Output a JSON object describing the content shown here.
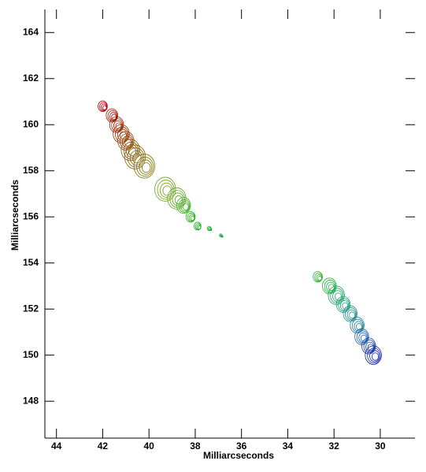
{
  "chart_data": {
    "type": "scatter",
    "xlabel": "Milliarcseconds",
    "ylabel": "Milliarcseconds",
    "xlim": [
      44.5,
      28.5
    ],
    "ylim": [
      146.4,
      165
    ],
    "xticks": [
      44,
      42,
      40,
      38,
      36,
      34,
      32,
      30
    ],
    "yticks": [
      148,
      150,
      152,
      154,
      156,
      158,
      160,
      162,
      164
    ],
    "x": [
      42.0,
      41.6,
      41.4,
      41.2,
      41.0,
      40.8,
      40.6,
      40.2,
      39.3,
      38.8,
      38.5,
      38.2,
      37.9,
      37.4,
      36.9,
      32.7,
      32.2,
      31.9,
      31.6,
      31.3,
      31.0,
      30.8,
      30.5,
      30.3
    ],
    "y": [
      160.8,
      160.4,
      160.0,
      159.6,
      159.3,
      158.9,
      158.6,
      158.2,
      157.2,
      156.8,
      156.5,
      156.0,
      155.6,
      155.5,
      155.2,
      153.4,
      153.0,
      152.6,
      152.2,
      151.8,
      151.3,
      150.8,
      150.4,
      150.0
    ],
    "sizes": [
      0.2,
      0.25,
      0.3,
      0.35,
      0.35,
      0.4,
      0.45,
      0.45,
      0.45,
      0.4,
      0.3,
      0.2,
      0.15,
      0.08,
      0.05,
      0.2,
      0.3,
      0.35,
      0.3,
      0.3,
      0.3,
      0.3,
      0.3,
      0.35
    ],
    "colors": [
      "#b00000",
      "#a81000",
      "#a02000",
      "#983000",
      "#904000",
      "#885000",
      "#806000",
      "#807000",
      "#70a010",
      "#60a020",
      "#40b020",
      "#30b020",
      "#20b020",
      "#20b030",
      "#20a040",
      "#30b030",
      "#20b040",
      "#20a060",
      "#20a080",
      "#209090",
      "#2080a0",
      "#2060b0",
      "#1040b0",
      "#1020a0"
    ]
  }
}
